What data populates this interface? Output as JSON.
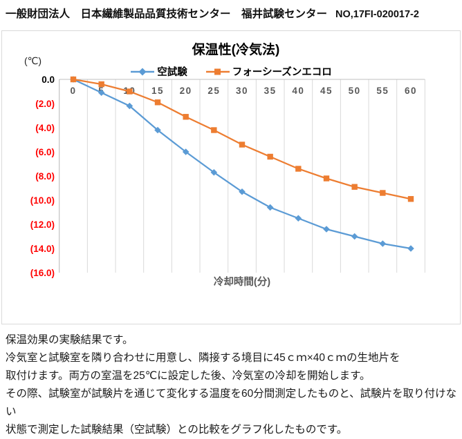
{
  "header": {
    "org_line": "一般財団法人　日本繊維製品品質技術センター　福井試験センター",
    "report_no": "NO,17FI-020017-2"
  },
  "chart_data": {
    "type": "line",
    "title": "保温性(冷気法)",
    "y_unit": "(℃)",
    "xlabel": "冷却時間(分)",
    "ylabel": "",
    "categories": [
      "0",
      "5",
      "10",
      "15",
      "20",
      "25",
      "30",
      "35",
      "40",
      "45",
      "50",
      "55",
      "60"
    ],
    "series": [
      {
        "name": "空試験",
        "color": "#5B9BD5",
        "marker": "diamond",
        "values": [
          0.0,
          -1.1,
          -2.2,
          -4.2,
          -6.0,
          -7.7,
          -9.3,
          -10.6,
          -11.5,
          -12.4,
          -13.0,
          -13.6,
          -14.0
        ]
      },
      {
        "name": "フォーシーズンエコロ",
        "color": "#ED7D31",
        "marker": "square",
        "values": [
          0.0,
          -0.4,
          -1.0,
          -1.9,
          -3.1,
          -4.2,
          -5.4,
          -6.4,
          -7.4,
          -8.2,
          -8.9,
          -9.4,
          -9.9
        ]
      }
    ],
    "ylim": [
      -16,
      0
    ],
    "ytick_step": 2,
    "ytick_labels": [
      "0.0",
      "(2.0)",
      "(4.0)",
      "(6.0)",
      "(8.0)",
      "(10.0)",
      "(12.0)",
      "(14.0)",
      "(16.0)"
    ],
    "grid": "vertical-only",
    "legend_position": "top",
    "colors": {
      "zero_tick": "#000000",
      "negative_tick": "#FF0000",
      "xtick": "#595959",
      "gridline": "#D9D9D9",
      "axis_line": "#BFBFBF",
      "chart_border": "#D9D9D9"
    }
  },
  "description": {
    "lines": [
      "保温効果の実験結果です。",
      "冷気室と試験室を隣り合わせに用意し、隣接する境目に45ｃｍ×40ｃｍの生地片を",
      "取付けます。両方の室温を25℃に設定した後、冷気室の冷却を開始します。",
      "その際、試験室が試験片を通じて変化する温度を60分間測定したものと、試験片を取り付けない",
      "状態で測定した試験結果（空試験）との比較をグラフ化したものです。"
    ]
  }
}
